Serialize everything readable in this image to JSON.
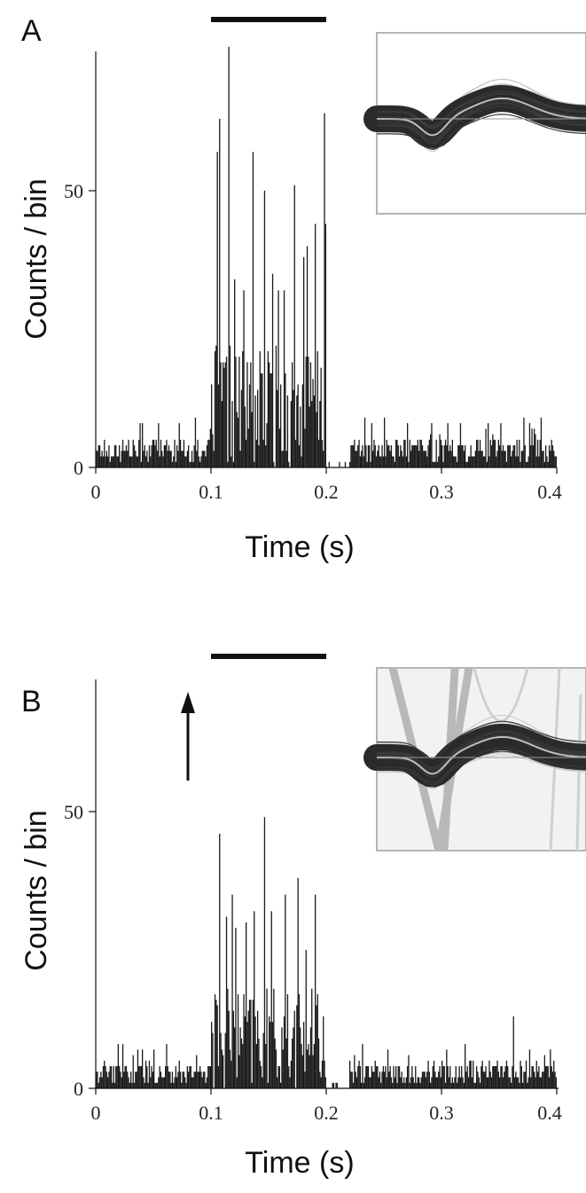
{
  "chart_data": [
    {
      "panel": "A",
      "type": "bar",
      "xlabel": "Time (s)",
      "ylabel": "Counts / bin",
      "xlim": [
        0,
        0.4
      ],
      "ylim": [
        0,
        75
      ],
      "xticks": [
        "0",
        "0.1",
        "0.2",
        "0.3",
        "0.4"
      ],
      "xtick_values": [
        0,
        0.1,
        0.2,
        0.3,
        0.4
      ],
      "yticks": [
        "0",
        "50"
      ],
      "ytick_values": [
        0,
        50
      ],
      "stimulus_bar": [
        0.1,
        0.2
      ],
      "bin_width": 0.001,
      "baseline_mean": 4,
      "baseline_max": 9,
      "response_mean": 11,
      "silent_window": [
        0.2,
        0.22
      ],
      "peaks": [
        {
          "t": 0.105,
          "v": 57
        },
        {
          "t": 0.107,
          "v": 63
        },
        {
          "t": 0.115,
          "v": 76
        },
        {
          "t": 0.12,
          "v": 34
        },
        {
          "t": 0.128,
          "v": 32
        },
        {
          "t": 0.136,
          "v": 57
        },
        {
          "t": 0.146,
          "v": 50
        },
        {
          "t": 0.153,
          "v": 35
        },
        {
          "t": 0.158,
          "v": 32
        },
        {
          "t": 0.163,
          "v": 32
        },
        {
          "t": 0.172,
          "v": 51
        },
        {
          "t": 0.18,
          "v": 38
        },
        {
          "t": 0.183,
          "v": 40
        },
        {
          "t": 0.19,
          "v": 44
        },
        {
          "t": 0.198,
          "v": 64
        },
        {
          "t": 0.199,
          "v": 44
        }
      ],
      "inset": {
        "type": "spike-waveforms",
        "style": "plain"
      },
      "colors": {
        "bars": "#1a1a1a",
        "inset_band": "#2a2a2a",
        "inset_mean": "#bdbdbd"
      }
    },
    {
      "panel": "B",
      "type": "bar",
      "xlabel": "Time (s)",
      "ylabel": "Counts / bin",
      "xlim": [
        0,
        0.4
      ],
      "ylim": [
        0,
        75
      ],
      "xticks": [
        "0",
        "0.1",
        "0.2",
        "0.3",
        "0.4"
      ],
      "xtick_values": [
        0,
        0.1,
        0.2,
        0.3,
        0.4
      ],
      "yticks": [
        "0",
        "50"
      ],
      "ytick_values": [
        0,
        50
      ],
      "stimulus_bar": [
        0.1,
        0.2
      ],
      "arrow_at": 0.08,
      "bin_width": 0.001,
      "baseline_mean": 4,
      "baseline_max": 8,
      "response_mean": 9,
      "silent_window": [
        0.2,
        0.22
      ],
      "peaks": [
        {
          "t": 0.107,
          "v": 46
        },
        {
          "t": 0.113,
          "v": 31
        },
        {
          "t": 0.118,
          "v": 35
        },
        {
          "t": 0.121,
          "v": 29
        },
        {
          "t": 0.13,
          "v": 30
        },
        {
          "t": 0.137,
          "v": 32
        },
        {
          "t": 0.146,
          "v": 49
        },
        {
          "t": 0.152,
          "v": 32
        },
        {
          "t": 0.164,
          "v": 35
        },
        {
          "t": 0.175,
          "v": 38
        },
        {
          "t": 0.182,
          "v": 25
        },
        {
          "t": 0.19,
          "v": 35
        },
        {
          "t": 0.362,
          "v": 13
        }
      ],
      "inset": {
        "type": "spike-waveforms",
        "style": "with-artifacts"
      },
      "colors": {
        "bars": "#1a1a1a",
        "inset_band": "#2a2a2a",
        "inset_mean": "#bdbdbd"
      }
    }
  ]
}
